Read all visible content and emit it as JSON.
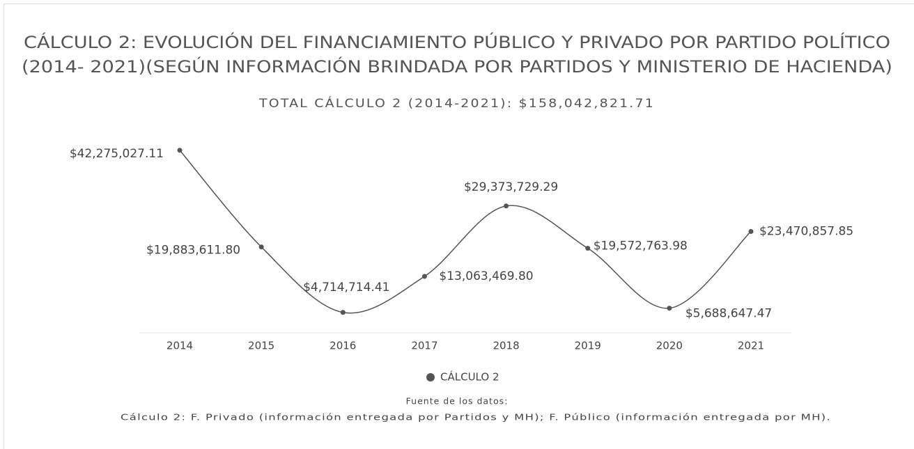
{
  "chart_data": {
    "type": "line",
    "title": [
      "CÁLCULO 2: EVOLUCIÓN DEL FINANCIAMIENTO PÚBLICO Y PRIVADO POR PARTIDO POLÍTICO",
      "(2014- 2021)(SEGÚN INFORMACIÓN BRINDADA POR PARTIDOS Y MINISTERIO DE HACIENDA)"
    ],
    "subtitle": "TOTAL CÁLCULO 2 (2014-2021): $158,042,821.71",
    "categories": [
      "2014",
      "2015",
      "2016",
      "2017",
      "2018",
      "2019",
      "2020",
      "2021"
    ],
    "series": [
      {
        "name": "CÁLCULO 2",
        "color": "#555555",
        "values": [
          42275027.11,
          19883611.8,
          4714714.41,
          13063469.8,
          29373729.29,
          19572763.98,
          5688647.47,
          23470857.85
        ],
        "value_labels": [
          "$42,275,027.11",
          "$19,883,611.80",
          "$4,714,714.41",
          "$13,063,469.80",
          "$29,373,729.29",
          "$19,572,763.98",
          "$5,688,647.47",
          "$23,470,857.85"
        ]
      }
    ],
    "ylim": [
      0,
      50000000
    ],
    "legend": "bottom",
    "source": [
      "Fuente de los datos:",
      "Cálculo 2: F. Privado (información entregada por Partidos y MH); F. Público (información entregada por MH)."
    ]
  }
}
